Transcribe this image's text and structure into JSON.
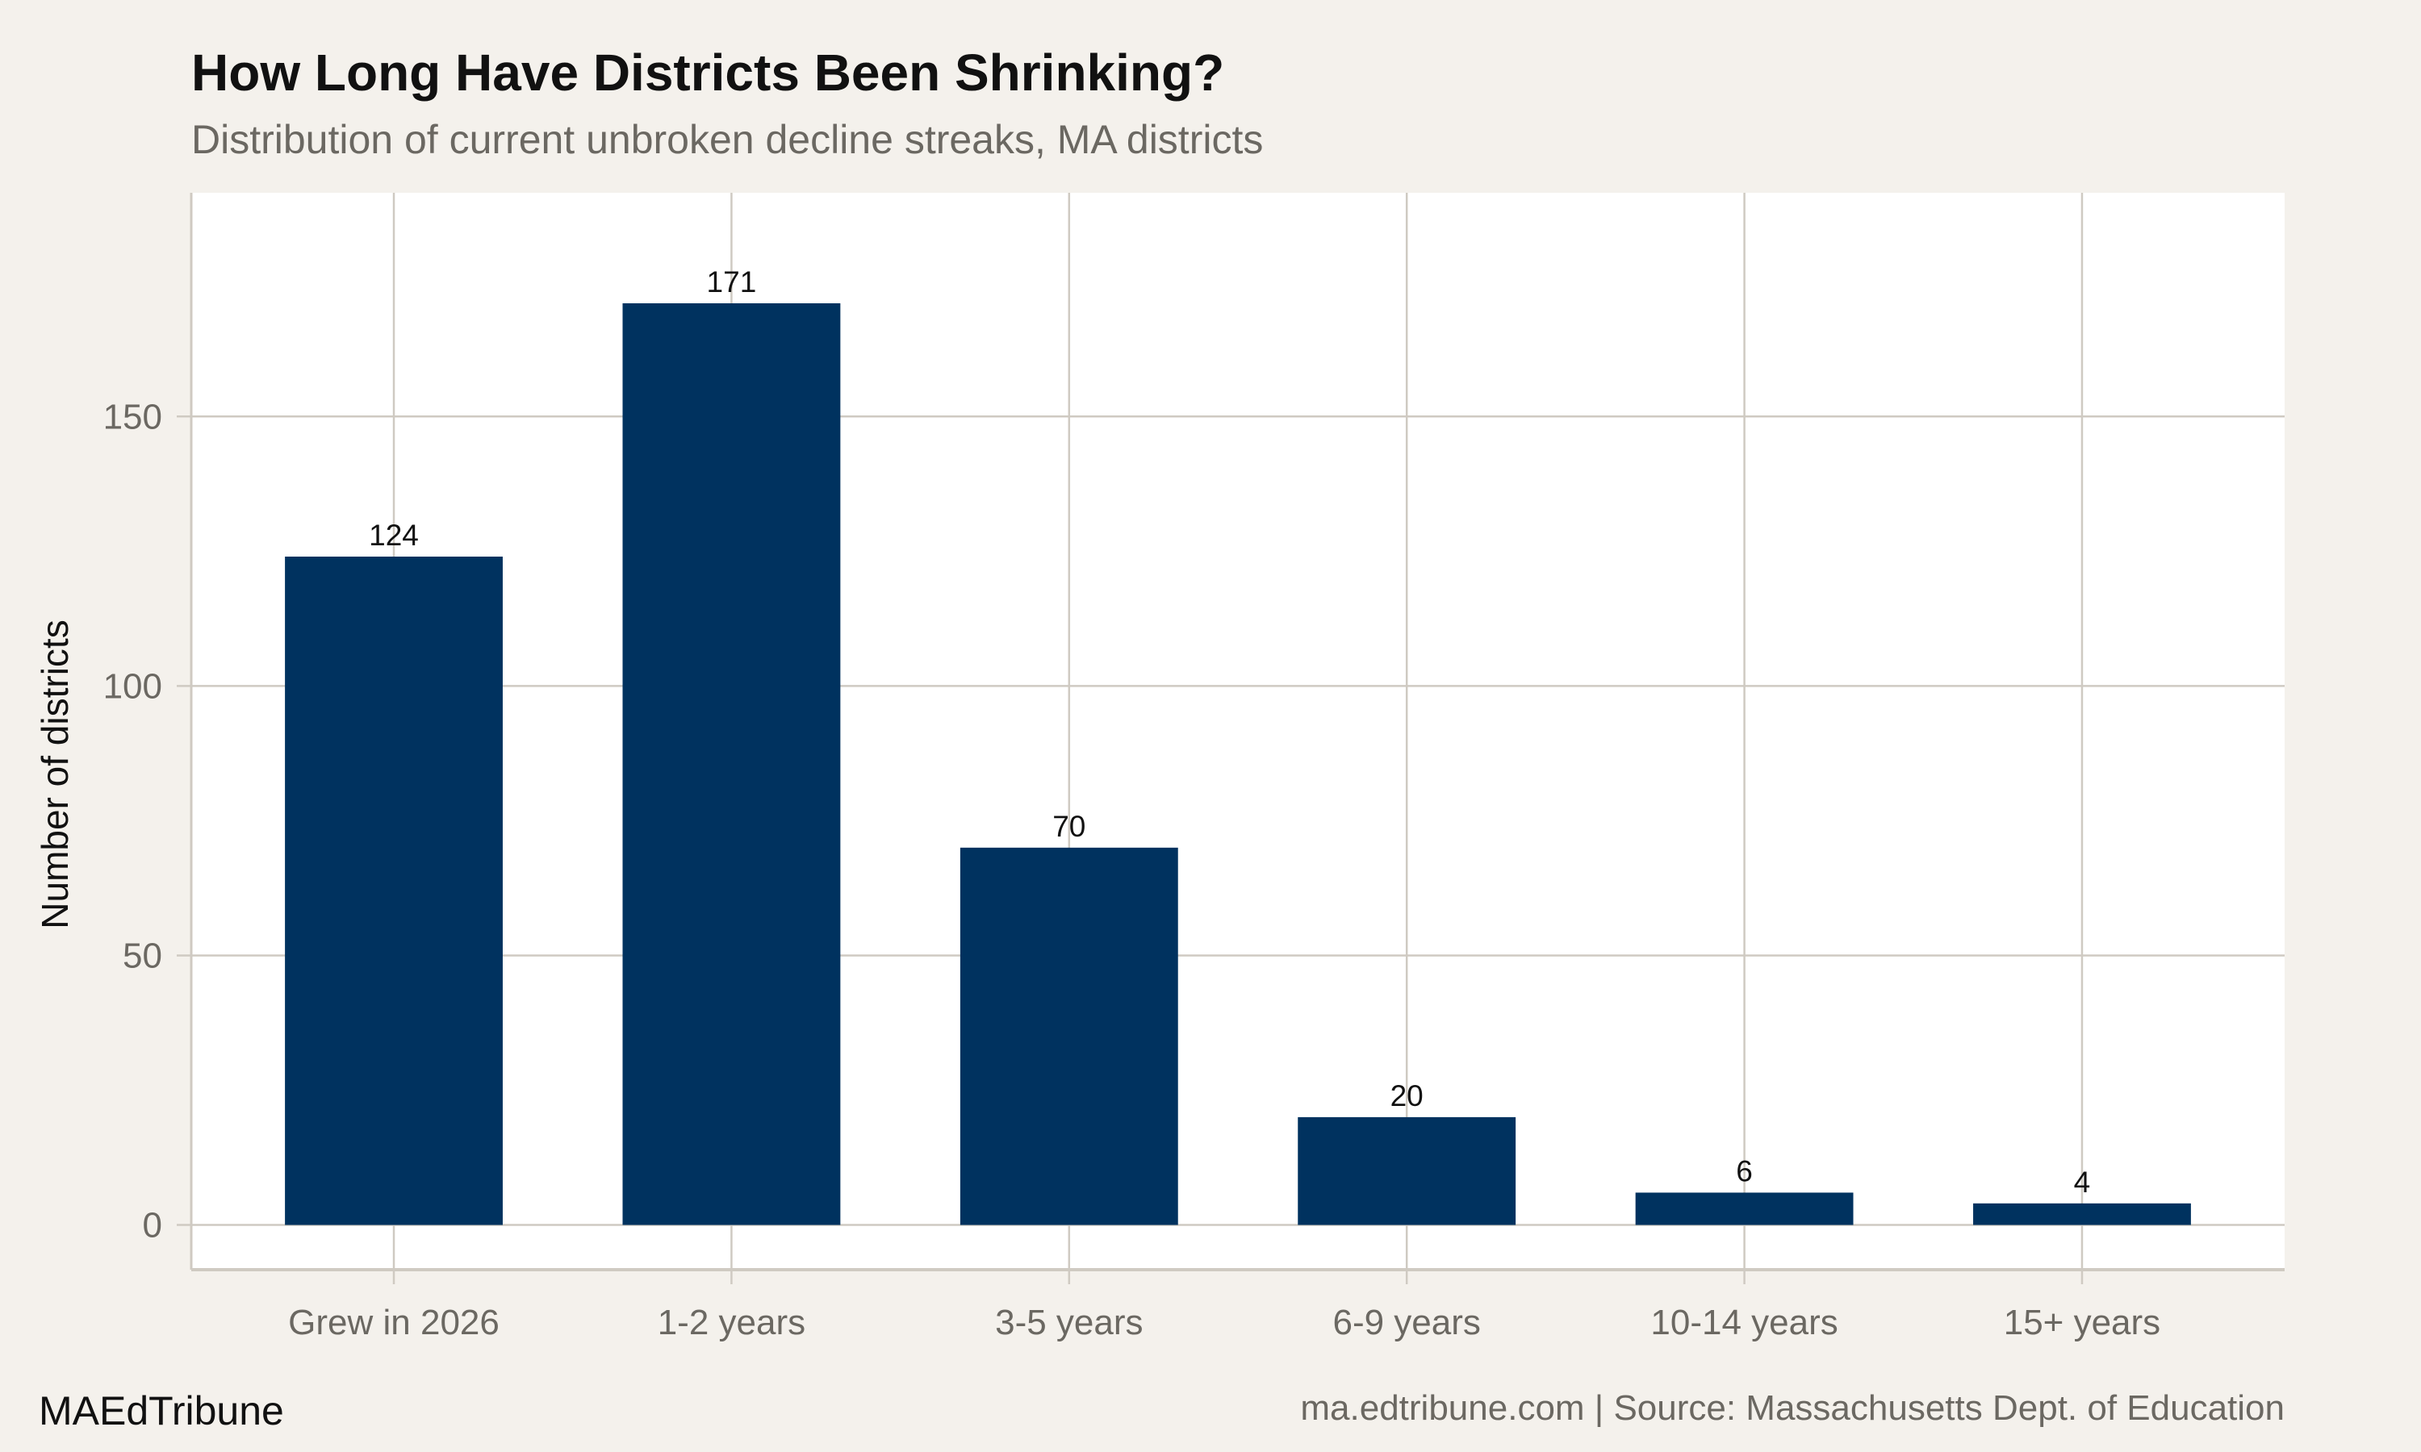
{
  "chart_data": {
    "type": "bar",
    "title": "How Long Have Districts Been Shrinking?",
    "subtitle": "Distribution of current unbroken decline streaks, MA districts",
    "xlabel": "",
    "ylabel": "Number of districts",
    "categories": [
      "Grew in 2026",
      "1-2 years",
      "3-5 years",
      "6-9 years",
      "10-14 years",
      "15+ years"
    ],
    "values": [
      124,
      171,
      70,
      20,
      6,
      4
    ],
    "data_labels": [
      "124",
      "171",
      "70",
      "20",
      "6",
      "4"
    ],
    "yticks": [
      0,
      50,
      100,
      150
    ],
    "ytick_labels": [
      "0",
      "50",
      "100",
      "150"
    ],
    "ylim": [
      -8.3,
      191.5
    ],
    "grid": true,
    "legend": "none",
    "colors": {
      "bar": "#00325f",
      "background": "#f4f1ec",
      "panel": "#ffffff",
      "grid": "#cfcac2"
    }
  },
  "footer": {
    "brand": "MAEdTribune",
    "source": "ma.edtribune.com | Source: Massachusetts Dept. of Education"
  }
}
